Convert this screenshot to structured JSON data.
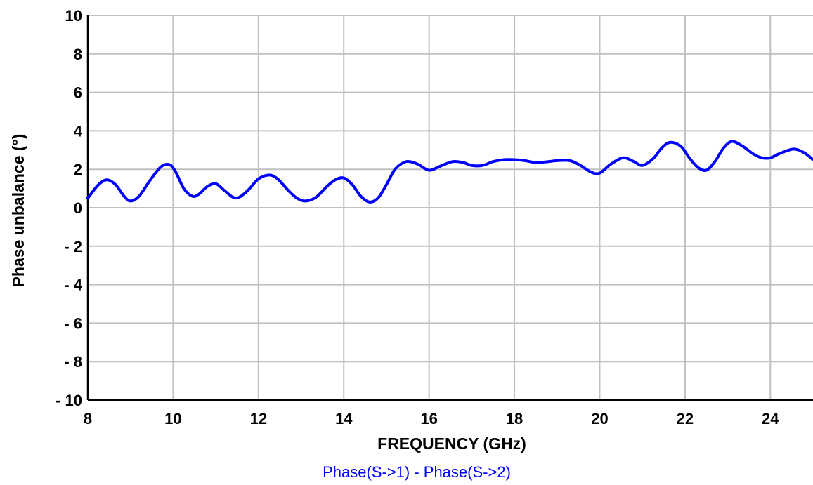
{
  "chart_data": {
    "type": "line",
    "title": "",
    "xlabel": "FREQUENCY (GHz)",
    "ylabel": "Phase unbalance (°)",
    "xlim": [
      8,
      25
    ],
    "ylim": [
      -10,
      10
    ],
    "x_ticks": [
      8,
      10,
      12,
      14,
      16,
      18,
      20,
      22,
      24
    ],
    "x_tick_labels": [
      "8",
      "10",
      "12",
      "14",
      "16",
      "18",
      "20",
      "22",
      "24"
    ],
    "y_ticks": [
      10,
      8,
      6,
      4,
      2,
      0,
      -2,
      -4,
      -6,
      -8,
      -10
    ],
    "y_tick_labels": [
      "10",
      "8",
      "6",
      "4",
      "2",
      "0",
      "- 2",
      "- 4",
      "- 6",
      "- 8",
      "- 10"
    ],
    "grid": true,
    "legend_position": "bottom-center",
    "series": [
      {
        "name": "Phase(S->1) - Phase(S->2)",
        "color": "#0000ff",
        "x": [
          8.0,
          8.25,
          8.45,
          8.65,
          8.85,
          9.0,
          9.2,
          9.45,
          9.7,
          9.9,
          10.05,
          10.25,
          10.45,
          10.6,
          10.8,
          11.0,
          11.2,
          11.4,
          11.55,
          11.75,
          12.0,
          12.25,
          12.45,
          12.7,
          12.9,
          13.1,
          13.35,
          13.6,
          13.8,
          14.0,
          14.2,
          14.4,
          14.6,
          14.8,
          15.0,
          15.2,
          15.4,
          15.55,
          15.75,
          16.0,
          16.25,
          16.55,
          16.8,
          17.0,
          17.25,
          17.5,
          17.75,
          18.0,
          18.25,
          18.5,
          18.8,
          19.0,
          19.3,
          19.55,
          19.8,
          20.0,
          20.25,
          20.55,
          20.8,
          21.0,
          21.25,
          21.45,
          21.65,
          21.9,
          22.1,
          22.3,
          22.5,
          22.7,
          22.9,
          23.1,
          23.35,
          23.6,
          23.8,
          24.0,
          24.25,
          24.55,
          24.8,
          25.0
        ],
        "values": [
          0.5,
          1.2,
          1.45,
          1.2,
          0.6,
          0.35,
          0.6,
          1.4,
          2.1,
          2.25,
          1.9,
          1.0,
          0.6,
          0.7,
          1.1,
          1.25,
          0.9,
          0.55,
          0.55,
          0.9,
          1.5,
          1.7,
          1.5,
          0.9,
          0.5,
          0.35,
          0.55,
          1.1,
          1.45,
          1.55,
          1.2,
          0.6,
          0.3,
          0.5,
          1.2,
          2.0,
          2.35,
          2.4,
          2.25,
          1.95,
          2.15,
          2.4,
          2.35,
          2.2,
          2.2,
          2.4,
          2.5,
          2.5,
          2.45,
          2.35,
          2.4,
          2.45,
          2.45,
          2.2,
          1.85,
          1.8,
          2.25,
          2.6,
          2.4,
          2.2,
          2.55,
          3.1,
          3.4,
          3.2,
          2.6,
          2.1,
          1.95,
          2.4,
          3.1,
          3.45,
          3.2,
          2.8,
          2.6,
          2.6,
          2.85,
          3.05,
          2.85,
          2.5
        ]
      }
    ]
  }
}
